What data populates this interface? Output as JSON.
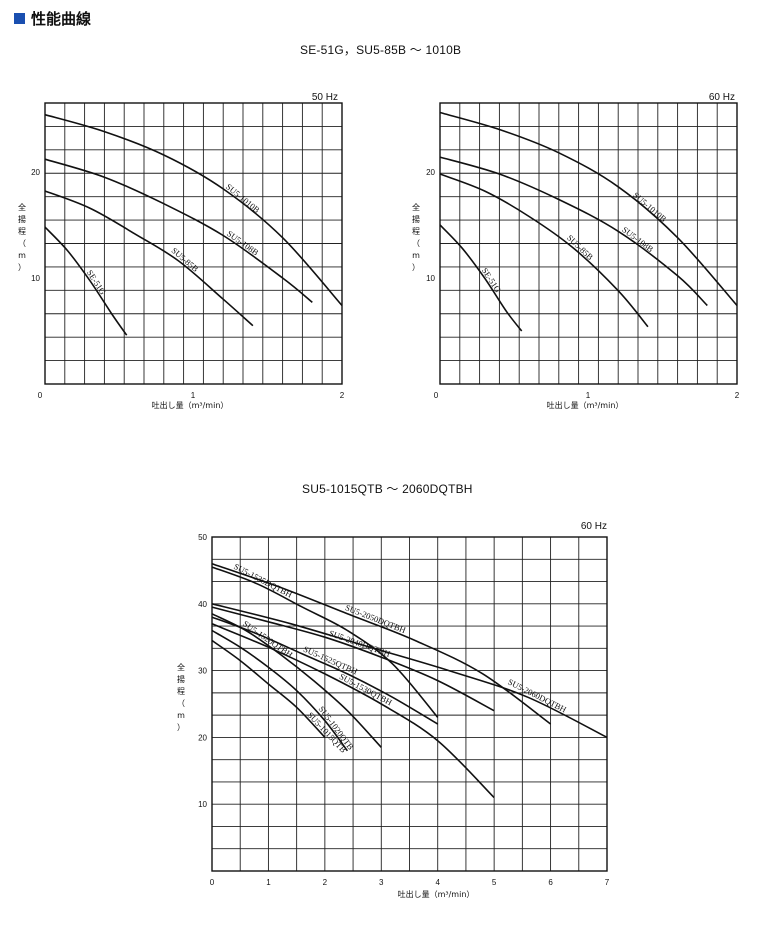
{
  "page": {
    "heading": "性能曲線",
    "heading_icon": "blue-square-icon",
    "accent_color": "#1a4fb0",
    "group_titles": [
      "SE-51G，SU5-85B ～ 1010B",
      "SU5-1015QTB ～ 2060DQTBH"
    ]
  },
  "chart_data": [
    {
      "type": "line",
      "frequency_label": "50 Hz",
      "xlabel": "吐出し量（m³/min）",
      "ylabel": "全揚程（m）",
      "xlim": [
        0,
        2.0
      ],
      "ylim": [
        0,
        26.5
      ],
      "x_ticks": [
        "0",
        "1",
        "2"
      ],
      "y_ticks": [
        "10",
        "20"
      ],
      "grid": true,
      "series": [
        {
          "name": "SU5-1010B",
          "x": [
            0,
            0.4,
            0.8,
            1.2,
            1.6,
            2.0
          ],
          "y": [
            25.4,
            23.8,
            21.6,
            18.4,
            13.8,
            7.4
          ]
        },
        {
          "name": "SU5-108B",
          "x": [
            0,
            0.4,
            0.8,
            1.2,
            1.6,
            1.8
          ],
          "y": [
            21.2,
            19.5,
            17.0,
            14.0,
            10.0,
            7.7
          ]
        },
        {
          "name": "SU5-85B",
          "x": [
            0,
            0.3,
            0.6,
            0.9,
            1.2,
            1.4
          ],
          "y": [
            18.2,
            16.6,
            14.2,
            11.6,
            8.0,
            5.5
          ]
        },
        {
          "name": "SE-51G",
          "x": [
            0,
            0.15,
            0.3,
            0.45,
            0.55
          ],
          "y": [
            14.8,
            12.6,
            9.8,
            6.6,
            4.6
          ]
        }
      ]
    },
    {
      "type": "line",
      "frequency_label": "60 Hz",
      "xlabel": "吐出し量（m³/min）",
      "ylabel": "全揚程（m）",
      "xlim": [
        0,
        2.0
      ],
      "ylim": [
        0,
        26.5
      ],
      "x_ticks": [
        "0",
        "1",
        "2"
      ],
      "y_ticks": [
        "10",
        "20"
      ],
      "grid": true,
      "series": [
        {
          "name": "SU5-1010B",
          "x": [
            0,
            0.4,
            0.8,
            1.2,
            1.6,
            2.0
          ],
          "y": [
            25.6,
            24.0,
            21.8,
            18.6,
            13.8,
            7.4
          ]
        },
        {
          "name": "SU5-108B",
          "x": [
            0,
            0.4,
            0.8,
            1.2,
            1.6,
            1.8
          ],
          "y": [
            21.4,
            19.8,
            17.4,
            14.4,
            10.2,
            7.4
          ]
        },
        {
          "name": "SU5-85B",
          "x": [
            0,
            0.3,
            0.6,
            0.9,
            1.2,
            1.4
          ],
          "y": [
            19.8,
            18.2,
            15.8,
            12.8,
            8.8,
            5.4
          ]
        },
        {
          "name": "SE-51G",
          "x": [
            0,
            0.15,
            0.3,
            0.45,
            0.55
          ],
          "y": [
            15.0,
            12.8,
            10.0,
            6.8,
            5.0
          ]
        }
      ]
    },
    {
      "type": "line",
      "frequency_label": "60 Hz",
      "xlabel": "吐出し量（m³/min）",
      "ylabel": "全揚程（m）",
      "xlim": [
        0,
        7
      ],
      "ylim": [
        0,
        50
      ],
      "x_ticks": [
        "0",
        "1",
        "2",
        "3",
        "4",
        "5",
        "6",
        "7"
      ],
      "y_ticks": [
        "10",
        "20",
        "30",
        "40",
        "50"
      ],
      "grid": true,
      "series": [
        {
          "name": "SU5-1015QTB",
          "x": [
            0,
            0.5,
            1.0,
            1.5,
            2.0
          ],
          "y": [
            34.5,
            31.5,
            28.0,
            24.5,
            20.0
          ]
        },
        {
          "name": "SU5-1020QTB",
          "x": [
            0,
            0.5,
            1.0,
            1.5,
            2.0,
            2.4
          ],
          "y": [
            36.0,
            33.5,
            30.5,
            27.0,
            22.5,
            18.0
          ]
        },
        {
          "name": "SU5-1520QTBH",
          "x": [
            0,
            0.6,
            1.2,
            1.8,
            2.4,
            3.0
          ],
          "y": [
            38.5,
            36.0,
            32.5,
            28.5,
            24.0,
            18.5
          ]
        },
        {
          "name": "SU5-1525QTBH",
          "x": [
            0,
            0.8,
            1.6,
            2.4,
            3.2,
            4.0
          ],
          "y": [
            38.0,
            35.5,
            32.5,
            29.5,
            26.0,
            22.0
          ]
        },
        {
          "name": "SU5-1530QTBH",
          "x": [
            0,
            1.0,
            2.0,
            3.0,
            4.0,
            5.0
          ],
          "y": [
            37.0,
            33.5,
            29.5,
            25.0,
            19.5,
            11.0
          ]
        },
        {
          "name": "SU5-1535DQTBH",
          "x": [
            0,
            0.8,
            1.6,
            2.4,
            3.2,
            4.0
          ],
          "y": [
            45.5,
            43.0,
            39.5,
            36.0,
            31.0,
            23.0
          ]
        },
        {
          "name": "SU5-2040DQTBH",
          "x": [
            0,
            1.0,
            2.0,
            3.0,
            4.0,
            5.0
          ],
          "y": [
            39.5,
            37.3,
            35.0,
            32.0,
            28.5,
            24.0
          ]
        },
        {
          "name": "SU5-2050DQTBH",
          "x": [
            0,
            1.2,
            2.4,
            3.6,
            4.8,
            6.0
          ],
          "y": [
            46.0,
            42.5,
            38.5,
            34.5,
            29.5,
            22.0
          ]
        },
        {
          "name": "SU5-2060DQTBH",
          "x": [
            0,
            1.4,
            2.8,
            4.2,
            5.6,
            7.0
          ],
          "y": [
            40.0,
            37.0,
            33.5,
            30.0,
            26.0,
            20.0
          ]
        }
      ]
    }
  ]
}
